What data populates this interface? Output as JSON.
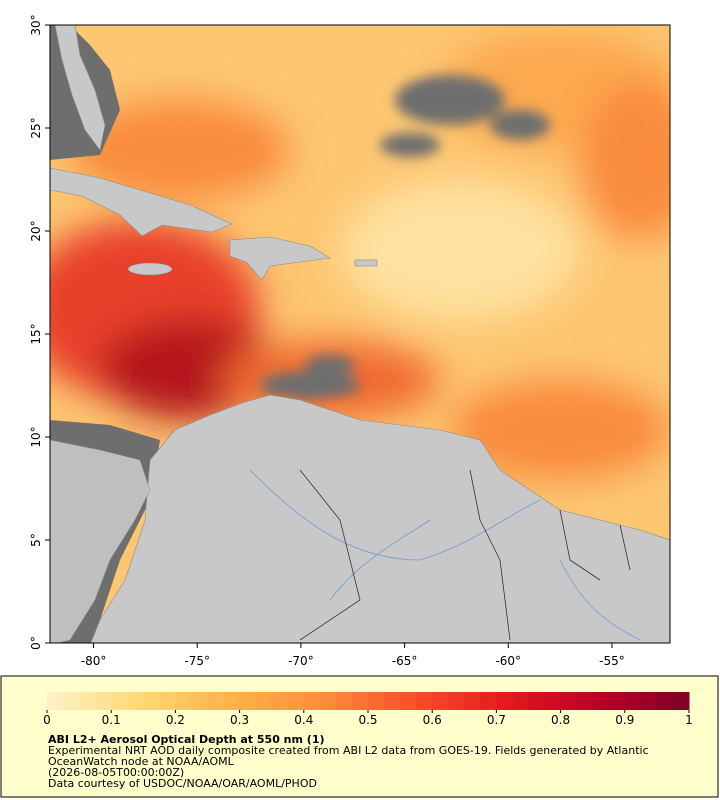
{
  "map": {
    "xlim": [
      -82.1,
      -52.2
    ],
    "ylim": [
      0,
      30
    ],
    "xticks": [
      {
        "value": -80,
        "label": "-80°"
      },
      {
        "value": -75,
        "label": "-75°"
      },
      {
        "value": -70,
        "label": "-70°"
      },
      {
        "value": -65,
        "label": "-65°"
      },
      {
        "value": -60,
        "label": "-60°"
      },
      {
        "value": -55,
        "label": "-55°"
      }
    ],
    "yticks": [
      {
        "value": 0,
        "label": "0°"
      },
      {
        "value": 5,
        "label": "5°"
      },
      {
        "value": 10,
        "label": "10°"
      },
      {
        "value": 15,
        "label": "15°"
      },
      {
        "value": 20,
        "label": "20°"
      },
      {
        "value": 25,
        "label": "25°"
      },
      {
        "value": 30,
        "label": "30°"
      }
    ]
  },
  "colorbar": {
    "range": [
      0,
      1
    ],
    "ticks": [
      0,
      0.1,
      0.2,
      0.3,
      0.4,
      0.5,
      0.6,
      0.7,
      0.8,
      0.9,
      1
    ],
    "colors": [
      "#fff2cc",
      "#fed976",
      "#feb24c",
      "#fd8d3c",
      "#fc4e2a",
      "#e31a1c",
      "#bd0026",
      "#800026"
    ]
  },
  "caption": {
    "title": "ABI L2+ Aerosol Optical Depth at 550 nm (1)",
    "lines": [
      "Experimental NRT AOD daily composite created from ABI L2 data from GOES-19. Fields generated by Atlantic",
      "OceanWatch node at NOAA/AOML",
      "(2026-08-05T00:00:00Z)",
      "Data courtesy of USDOC/NOAA/OAR/AOML/PHOD"
    ]
  }
}
